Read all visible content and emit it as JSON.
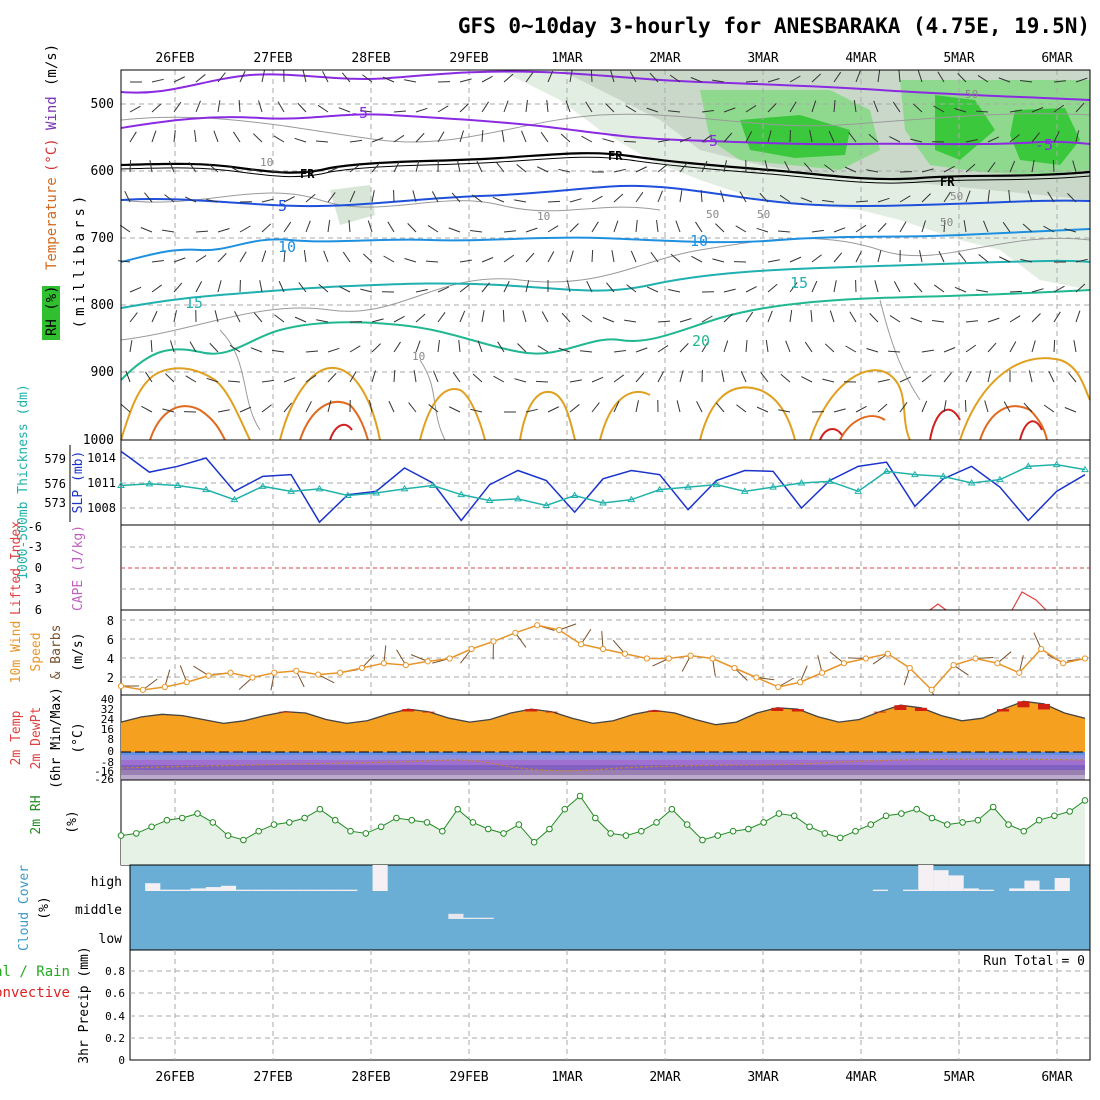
{
  "title": "GFS 0~10day 3-hourly for ANESBARAKA (4.75E, 19.5N)",
  "x_axis": {
    "labels": [
      "26FEB",
      "27FEB",
      "28FEB",
      "29FEB",
      "1MAR",
      "2MAR",
      "3MAR",
      "4MAR",
      "5MAR",
      "6MAR"
    ]
  },
  "panels": {
    "upper": {
      "labels": [
        {
          "text": "RH (%)",
          "color": "#1fa81f"
        },
        {
          "text": "Temperature",
          "color": "#d2691e"
        },
        {
          "text": "(°C)",
          "color": "#d23232"
        },
        {
          "text": "Wind",
          "color": "#7a33b5"
        },
        {
          "text": "(m/s)",
          "color": "#000000"
        }
      ],
      "ylabel": "(millibars)",
      "pressure_ticks": [
        500,
        600,
        700,
        800,
        900,
        1000
      ],
      "contour_labels": [
        "-5",
        "-5",
        "FR",
        "FR",
        "FR",
        "-5",
        "5",
        "10",
        "10",
        "15",
        "15",
        "20",
        "10",
        "10",
        "10",
        "50",
        "50",
        "50",
        "50",
        "50"
      ]
    },
    "slp": {
      "left_label": "1000-500mb Thickness (dm)",
      "right_label": "SLP (mb)",
      "thickness_ticks": [
        "579",
        "576",
        "573"
      ],
      "slp_ticks": [
        "1014",
        "1011",
        "1008"
      ]
    },
    "cape": {
      "left_label": "Lifted Index",
      "right_label": "CAPE (J/kg)",
      "ticks": [
        "-6",
        "-3",
        "0",
        "3",
        "6"
      ]
    },
    "wind10": {
      "labels": [
        "10m Wind",
        "Speed",
        "& Barbs",
        "(m/s)"
      ],
      "ticks": [
        "8",
        "6",
        "4",
        "2"
      ]
    },
    "temp2m": {
      "labels": [
        "2m Temp",
        "2m DewPt",
        "(6hr Min/Max)",
        "(°C)"
      ],
      "ticks": [
        "40",
        "32",
        "24",
        "16",
        "8",
        "0",
        "-8",
        "-16",
        "-26"
      ]
    },
    "rh2m": {
      "labels": [
        "2m RH",
        "(%)"
      ]
    },
    "cloud": {
      "labels": [
        "Cloud Cover",
        "(%)"
      ],
      "levels": [
        "high",
        "middle",
        "low"
      ]
    },
    "precip": {
      "labels": [
        "Total / Rain",
        "Convective",
        "3hr Precip (mm)"
      ],
      "ticks": [
        "0.8",
        "0.6",
        "0.4",
        "0.2",
        "0"
      ],
      "run_total": "Run Total = 0"
    }
  },
  "chart_data": [
    {
      "type": "line",
      "title": "1000-500mb Thickness (dm) / SLP (mb)",
      "series": [
        {
          "name": "SLP (mb)",
          "color": "#1a33cc",
          "values": [
            1014.8,
            1012.3,
            1013.0,
            1014.0,
            1010.0,
            1011.8,
            1012.0,
            1006.3,
            1009.6,
            1010.0,
            1012.8,
            1011.0,
            1006.5,
            1010.8,
            1012.5,
            1011.3,
            1007.5,
            1011.5,
            1012.5,
            1012.0,
            1007.8,
            1011.3,
            1012.5,
            1012.4,
            1008.0,
            1011.3,
            1013.0,
            1013.5,
            1008.2,
            1011.5,
            1013.0,
            1010.5,
            1006.5,
            1010.0,
            1012.0
          ]
        },
        {
          "name": "1000-500mb Thickness (dm)",
          "color": "#20b2aa",
          "values": [
            575.7,
            575.9,
            575.7,
            575.2,
            574.0,
            575.6,
            575.0,
            575.3,
            574.5,
            574.8,
            575.3,
            575.7,
            574.6,
            573.9,
            574.1,
            573.3,
            574.5,
            573.6,
            574.0,
            575.2,
            575.5,
            575.8,
            575.0,
            575.5,
            576.0,
            576.2,
            575.0,
            577.4,
            577.0,
            576.8,
            576.0,
            576.4,
            578.0,
            578.2,
            577.6
          ]
        }
      ]
    },
    {
      "type": "line",
      "title": "10m Wind Speed (m/s)",
      "series": [
        {
          "name": "10m Wind Speed",
          "color": "#e8952a",
          "values": [
            1.6,
            1.2,
            1.5,
            2.0,
            2.7,
            3.0,
            2.5,
            3.0,
            3.2,
            2.8,
            3.0,
            3.5,
            4.0,
            3.8,
            4.2,
            4.5,
            5.5,
            6.3,
            7.2,
            8.0,
            7.5,
            6.0,
            5.5,
            5.0,
            4.5,
            4.5,
            4.8,
            4.5,
            3.5,
            2.5,
            1.5,
            2.0,
            3.0,
            4.0,
            4.5,
            5.0,
            3.5,
            1.2,
            3.8,
            4.5,
            4.0,
            3.0,
            5.5,
            4.0,
            4.5
          ]
        }
      ]
    },
    {
      "type": "area",
      "title": "2m Temp (°C)",
      "series": [
        {
          "name": "2m Temp",
          "color": "#555555",
          "values": [
            23,
            27,
            29,
            28,
            25,
            22,
            24,
            28,
            31,
            30,
            25,
            22,
            24,
            29,
            33,
            31,
            26,
            23,
            25,
            30,
            33,
            31,
            26,
            22,
            24,
            29,
            32,
            30,
            25,
            21,
            23,
            30,
            34,
            33,
            27,
            23,
            25,
            31,
            36,
            34,
            28,
            24,
            26,
            33,
            39,
            37,
            30,
            26
          ]
        },
        {
          "name": "2m DewPt",
          "color": "#c08040",
          "values": [
            -20,
            -19,
            -18,
            -18,
            -17,
            -16,
            -15,
            -14,
            -13,
            -12,
            -12,
            -11,
            -10,
            -9,
            -10,
            -11,
            -14,
            -16,
            -16,
            -15,
            -14,
            -13,
            -12,
            -14,
            -16,
            -17,
            -16,
            -15,
            -14,
            -13,
            -12,
            -12,
            -11,
            -10,
            -11,
            -12,
            -13,
            -13,
            -12,
            -11,
            -12,
            -12,
            -13,
            -13,
            -12,
            -12,
            -11,
            -11
          ]
        }
      ]
    },
    {
      "type": "line",
      "title": "2m RH (%)",
      "series": [
        {
          "name": "2m RH",
          "color": "#228b22",
          "values": [
            12,
            13,
            16,
            19,
            20,
            22,
            18,
            12,
            10,
            14,
            17,
            18,
            20,
            24,
            19,
            14,
            13,
            16,
            20,
            19,
            18,
            14,
            24,
            18,
            15,
            13,
            17,
            9,
            15,
            24,
            30,
            20,
            13,
            12,
            14,
            18,
            24,
            17,
            10,
            12,
            14,
            15,
            18,
            22,
            21,
            16,
            13,
            11,
            14,
            17,
            21,
            22,
            24,
            20,
            17,
            18,
            19,
            25,
            17,
            14,
            19,
            21,
            23,
            28
          ]
        }
      ]
    },
    {
      "type": "bar",
      "title": "Cloud Cover (%)",
      "series": [
        {
          "name": "high cloud",
          "values": [
            0,
            30,
            5,
            5,
            10,
            15,
            20,
            5,
            5,
            5,
            5,
            5,
            5,
            5,
            5,
            0,
            100,
            0,
            0,
            0,
            0,
            0,
            0,
            0,
            0,
            0,
            0,
            0,
            0,
            0,
            0,
            0,
            0,
            0,
            0,
            0,
            0,
            0,
            0,
            0,
            0,
            0,
            0,
            0,
            0,
            0,
            0,
            0,
            0,
            5,
            0,
            5,
            100,
            80,
            60,
            10,
            5,
            0,
            10,
            40,
            5,
            50,
            0
          ]
        },
        {
          "name": "middle cloud",
          "values": [
            0,
            0,
            0,
            0,
            0,
            0,
            0,
            0,
            0,
            0,
            0,
            0,
            0,
            0,
            0,
            0,
            0,
            0,
            0,
            0,
            0,
            20,
            5,
            5,
            0,
            0,
            0,
            0,
            0,
            0,
            0,
            0,
            0,
            0,
            0,
            0,
            0,
            0,
            0,
            0,
            0,
            0,
            0,
            0,
            0,
            0,
            0,
            0,
            0,
            0,
            0,
            0,
            0,
            0,
            0,
            0,
            0,
            0,
            0,
            0,
            0,
            0,
            0
          ]
        }
      ]
    },
    {
      "type": "bar",
      "title": "3hr Precip (mm)",
      "ylim": [
        0,
        0.9
      ],
      "series": [
        {
          "name": "Total / Rain",
          "color": "#22aa22",
          "values": [
            0,
            0,
            0,
            0,
            0,
            0,
            0,
            0,
            0,
            0
          ]
        },
        {
          "name": "Convective",
          "color": "#dd2222",
          "values": [
            0,
            0,
            0,
            0,
            0,
            0,
            0,
            0,
            0,
            0
          ]
        }
      ]
    }
  ]
}
